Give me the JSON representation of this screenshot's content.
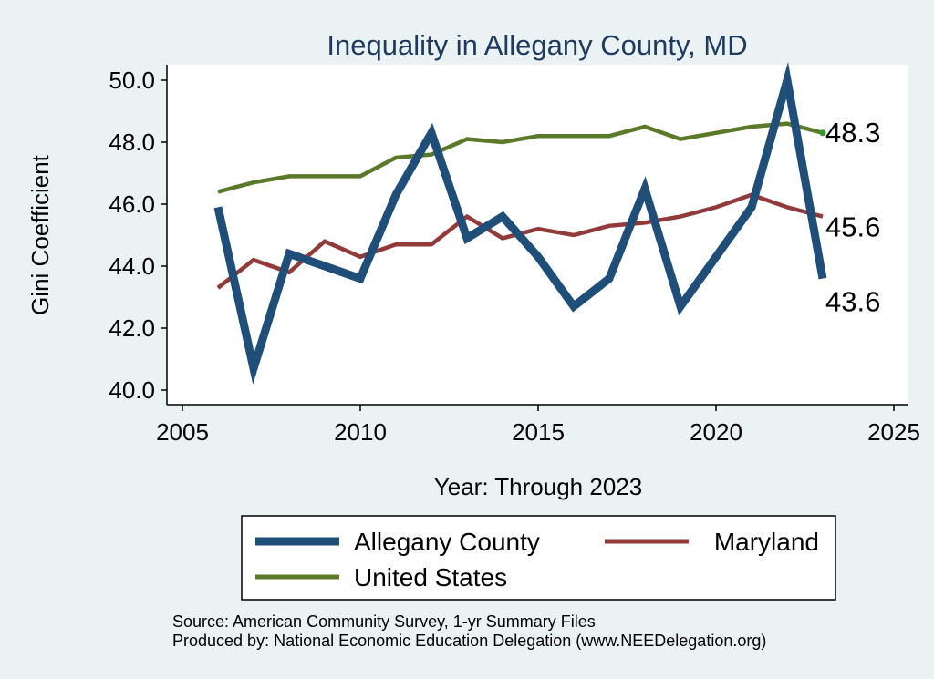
{
  "chart_data": {
    "type": "line",
    "title": "Inequality in Allegany County, MD",
    "xlabel": "Year: Through 2023",
    "ylabel": "Gini Coefficient",
    "xlim": [
      2005,
      2025
    ],
    "ylim": [
      40.0,
      50.0
    ],
    "xticks": [
      "2005",
      "2010",
      "2015",
      "2020",
      "2025"
    ],
    "yticks": [
      "40.0",
      "42.0",
      "44.0",
      "46.0",
      "48.0",
      "50.0"
    ],
    "grid": false,
    "legend_position": "bottom",
    "x": [
      2006,
      2007,
      2008,
      2009,
      2010,
      2011,
      2012,
      2013,
      2014,
      2015,
      2016,
      2017,
      2018,
      2019,
      2020,
      2021,
      2022,
      2023
    ],
    "series": [
      {
        "name": "Allegany County",
        "color": "#1f4e79",
        "values": [
          45.9,
          40.7,
          44.4,
          44.0,
          43.6,
          46.3,
          48.3,
          44.9,
          45.6,
          44.3,
          42.7,
          43.6,
          46.5,
          42.7,
          44.3,
          45.9,
          50.0,
          43.6
        ],
        "end_label": "43.6"
      },
      {
        "name": "Maryland",
        "color": "#923a3a",
        "values": [
          43.3,
          44.2,
          43.8,
          44.8,
          44.3,
          44.7,
          44.7,
          45.6,
          44.9,
          45.2,
          45.0,
          45.3,
          45.4,
          45.6,
          45.9,
          46.3,
          45.9,
          45.6
        ],
        "end_label": "45.6"
      },
      {
        "name": "United States",
        "color": "#5a7a2a",
        "values": [
          46.4,
          46.7,
          46.9,
          46.9,
          46.9,
          47.5,
          47.6,
          48.1,
          48.0,
          48.2,
          48.2,
          48.2,
          48.5,
          48.1,
          48.3,
          48.5,
          48.6,
          48.3
        ],
        "end_label": "48.3"
      }
    ],
    "annotations": [
      "Source: American Community Survey, 1-yr Summary Files",
      "Produced by: National Economic Education Delegation (www.NEEDelegation.org)"
    ]
  }
}
